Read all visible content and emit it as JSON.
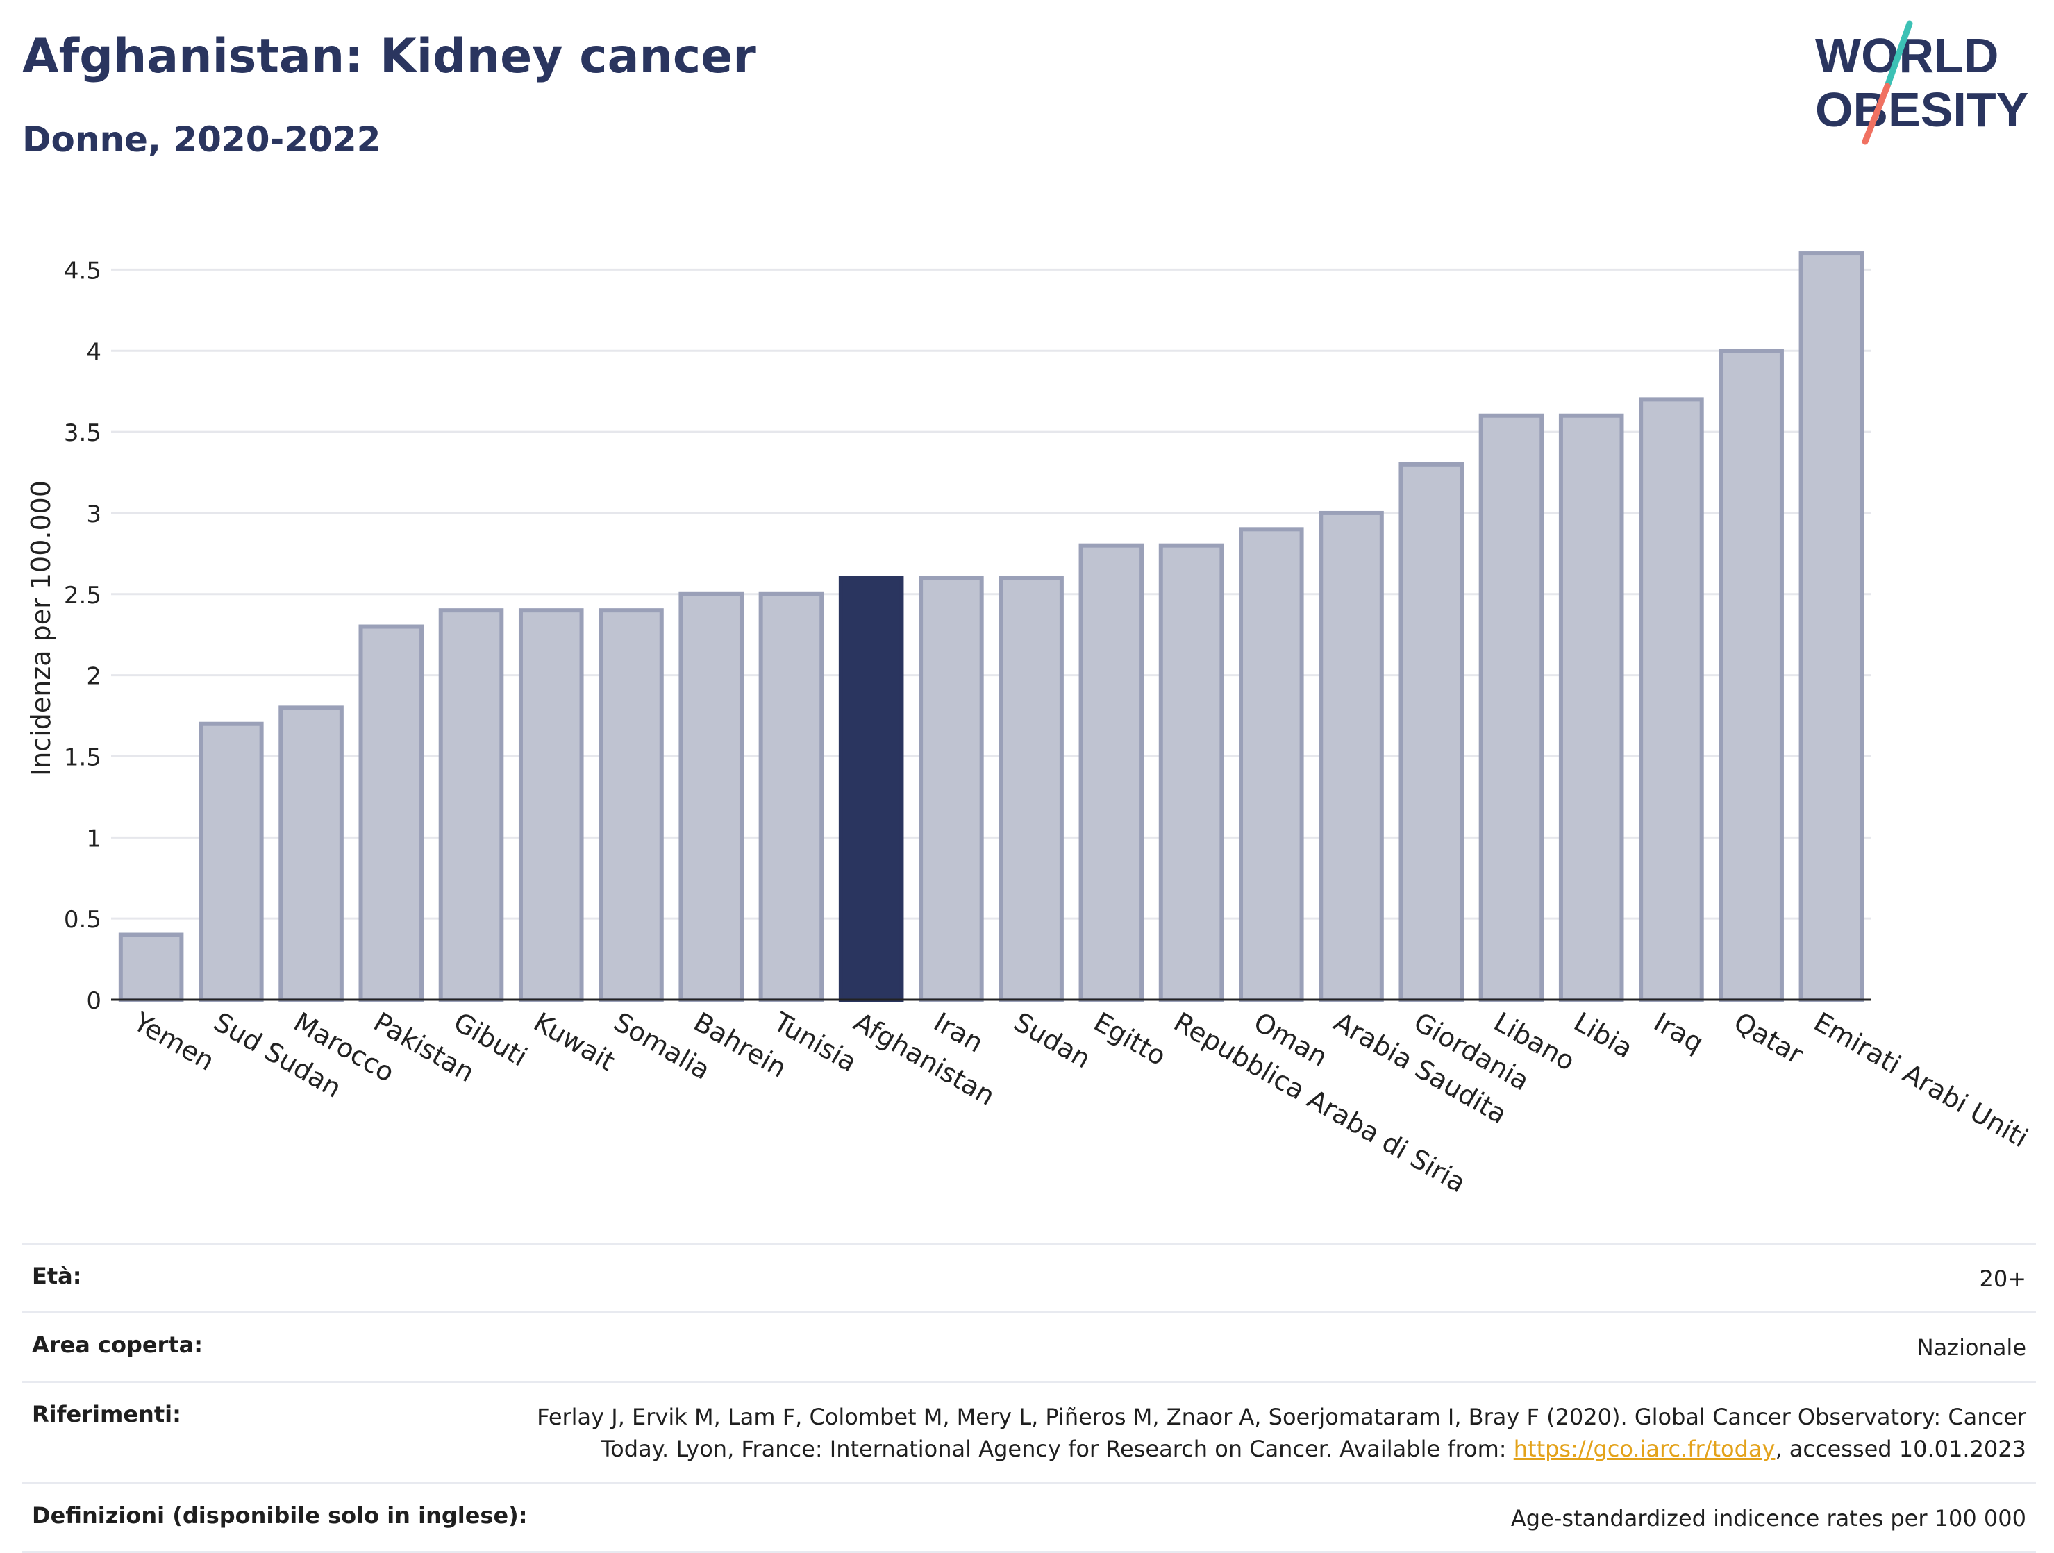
{
  "header": {
    "title": "Afghanistan: Kidney cancer",
    "subtitle": "Donne, 2020-2022"
  },
  "logo": {
    "line1": "WORLD",
    "line2": "OBESITY",
    "slash_colors": [
      "#3cc1b5",
      "#f07161"
    ],
    "text_color": "#2a355f"
  },
  "chart_data": {
    "type": "bar",
    "ylabel": "Incidenza per 100.000",
    "xlabel": "",
    "ylim": [
      0,
      4.5
    ],
    "yticks": [
      "0",
      "0.5",
      "1",
      "1.5",
      "2",
      "2.5",
      "3",
      "3.5",
      "4",
      "4.5"
    ],
    "grid": true,
    "categories": [
      "Yemen",
      "Sud Sudan",
      "Marocco",
      "Pakistan",
      "Gibuti",
      "Kuwait",
      "Somalia",
      "Bahrein",
      "Tunisia",
      "Afghanistan",
      "Iran",
      "Sudan",
      "Egitto",
      "Repubblica Araba di Siria",
      "Oman",
      "Arabia Saudita",
      "Giordania",
      "Libano",
      "Libia",
      "Iraq",
      "Qatar",
      "Emirati Arabi Uniti"
    ],
    "values": [
      0.4,
      1.7,
      1.8,
      2.3,
      2.4,
      2.4,
      2.4,
      2.5,
      2.5,
      2.6,
      2.6,
      2.6,
      2.8,
      2.8,
      2.9,
      3.0,
      3.3,
      3.6,
      3.6,
      3.7,
      4.0,
      4.6
    ],
    "highlight": "Afghanistan",
    "colors": {
      "bar": "#bfc3d1",
      "bar_border": "#9aa0b8",
      "highlight": "#2a355f"
    }
  },
  "meta": {
    "age_label": "Età:",
    "age_value": "20+",
    "area_label": "Area coperta:",
    "area_value": "Nazionale",
    "refs_label": "Riferimenti:",
    "refs_text1": "Ferlay J, Ervik M, Lam F, Colombet M, Mery L, Piñeros M, Znaor A, Soerjomataram I, Bray F (2020). Global Cancer Observatory: Cancer Today. Lyon, France: International Agency for Research on Cancer. Available from: ",
    "refs_link": "https://gco.iarc.fr/today",
    "refs_text2": ", accessed 10.01.2023",
    "defs_label": "Definizioni (disponibile solo in inglese):",
    "defs_value": "Age-standardized indicence rates per 100 000"
  }
}
